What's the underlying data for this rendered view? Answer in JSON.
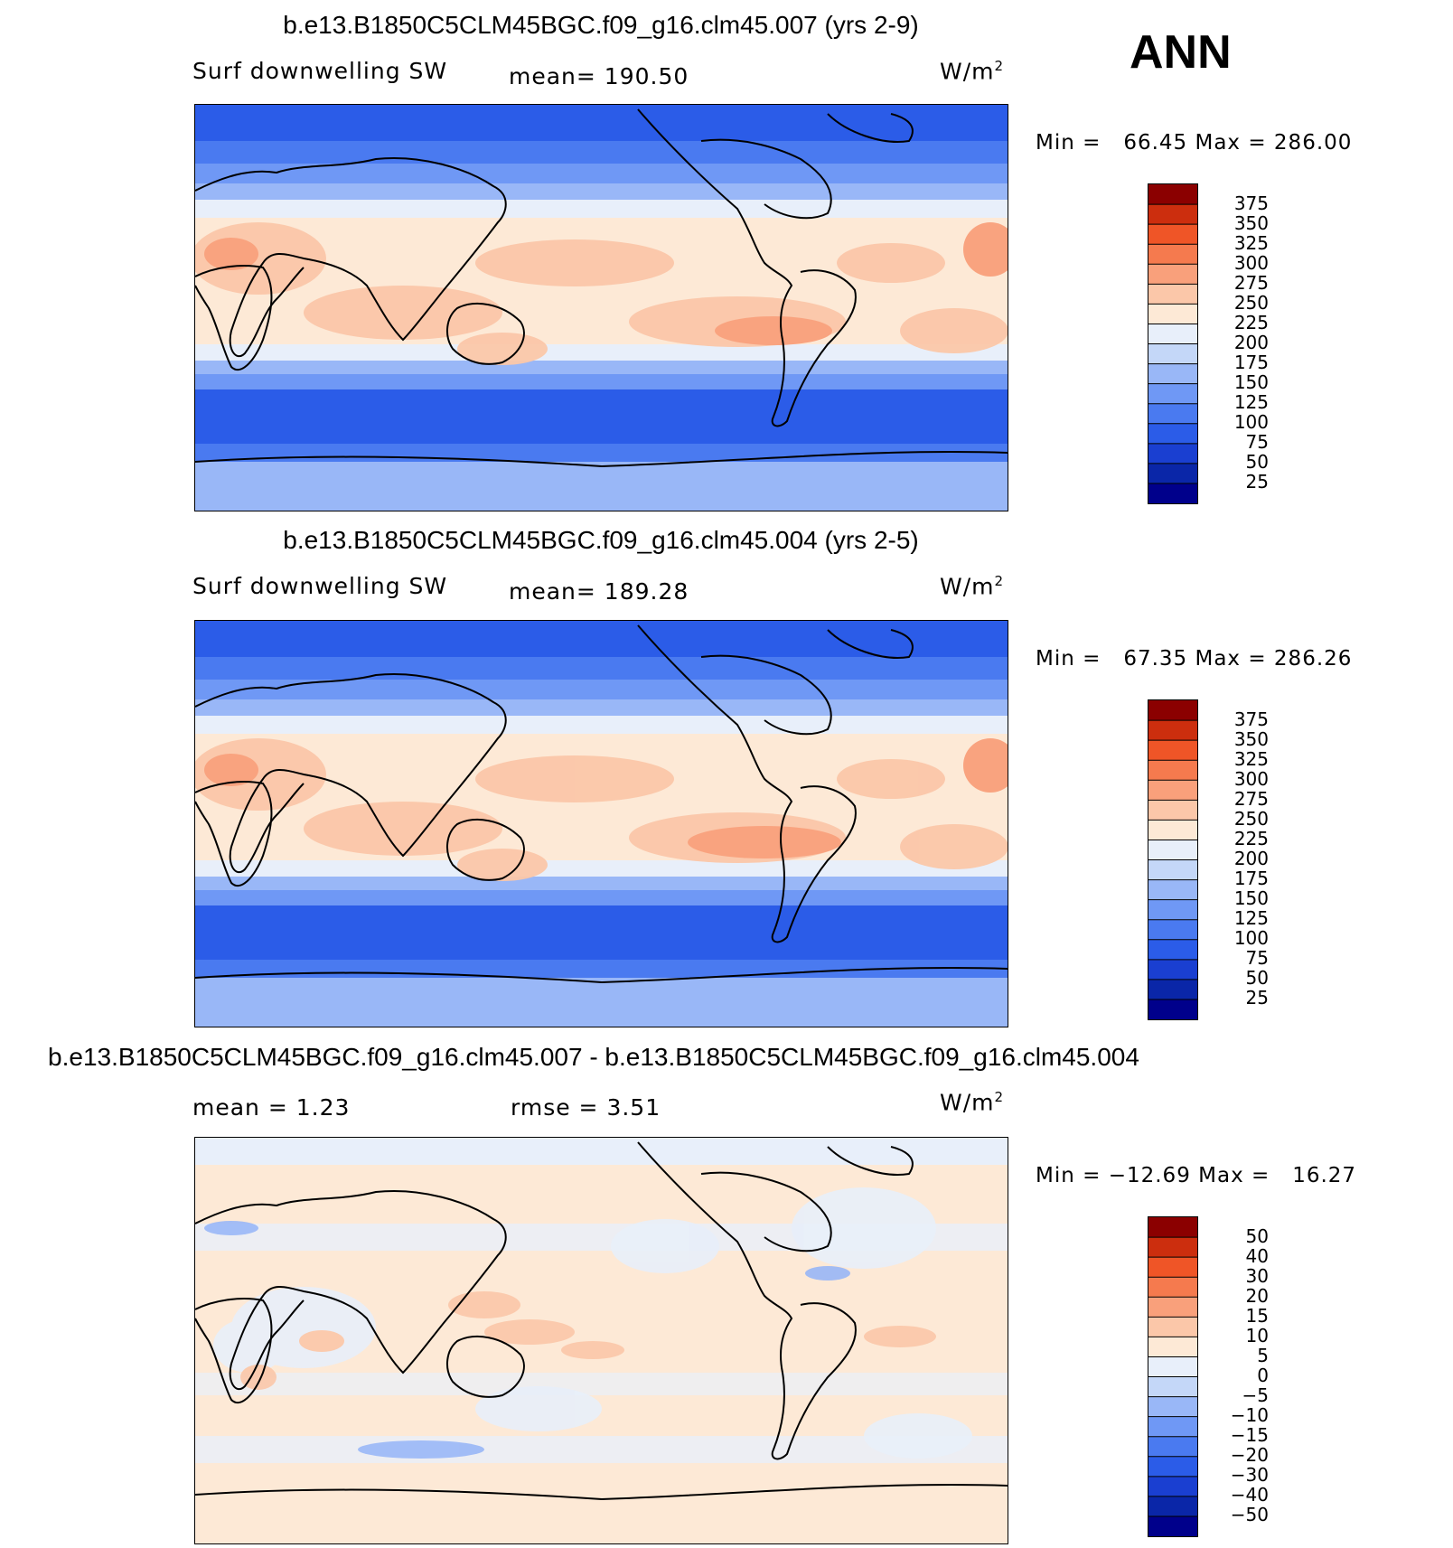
{
  "season": "ANN",
  "colors": {
    "abs_scale": [
      "#00008b",
      "#0a26a8",
      "#1a3fd1",
      "#2b5ce8",
      "#4a7af0",
      "#6f98f5",
      "#99b7f7",
      "#c4d7f8",
      "#e8effa",
      "#fde9d6",
      "#fbc7a9",
      "#f9a07b",
      "#f57a4e",
      "#ef5527",
      "#cc2e0e",
      "#8b0000"
    ],
    "diff_scale": [
      "#00008b",
      "#0a26a8",
      "#1a3fd1",
      "#2b5ce8",
      "#4a7af0",
      "#6f98f5",
      "#99b7f7",
      "#c4d7f8",
      "#e8effa",
      "#fde9d6",
      "#fbc7a9",
      "#f9a07b",
      "#f57a4e",
      "#ef5527",
      "#cc2e0e",
      "#8b0000"
    ]
  },
  "panels": [
    {
      "title": "b.e13.B1850C5CLM45BGC.f09_g16.clm45.007 (yrs 2-9)",
      "left_label": "Surf downwelling SW",
      "center_label": "mean= 190.50",
      "units_base": "W/m",
      "units_sup": "2",
      "minmax": "Min =   66.45 Max = 286.00",
      "levels": [
        "375",
        "350",
        "325",
        "300",
        "275",
        "250",
        "225",
        "200",
        "175",
        "150",
        "125",
        "100",
        "75",
        "50",
        "25"
      ]
    },
    {
      "title": "b.e13.B1850C5CLM45BGC.f09_g16.clm45.004 (yrs 2-5)",
      "left_label": "Surf downwelling SW",
      "center_label": "mean= 189.28",
      "units_base": "W/m",
      "units_sup": "2",
      "minmax": "Min =   67.35 Max = 286.26",
      "levels": [
        "375",
        "350",
        "325",
        "300",
        "275",
        "250",
        "225",
        "200",
        "175",
        "150",
        "125",
        "100",
        "75",
        "50",
        "25"
      ]
    },
    {
      "title": "b.e13.B1850C5CLM45BGC.f09_g16.clm45.007 - b.e13.B1850C5CLM45BGC.f09_g16.clm45.004",
      "left_label": "mean =    1.23",
      "center_label": "rmse =    3.51",
      "units_base": "W/m",
      "units_sup": "2",
      "minmax": "Min = −12.69 Max =   16.27",
      "levels": [
        "50",
        "40",
        "30",
        "20",
        "15",
        "10",
        "5",
        "0",
        "−5",
        "−10",
        "−15",
        "−20",
        "−30",
        "−40",
        "−50"
      ]
    }
  ]
}
